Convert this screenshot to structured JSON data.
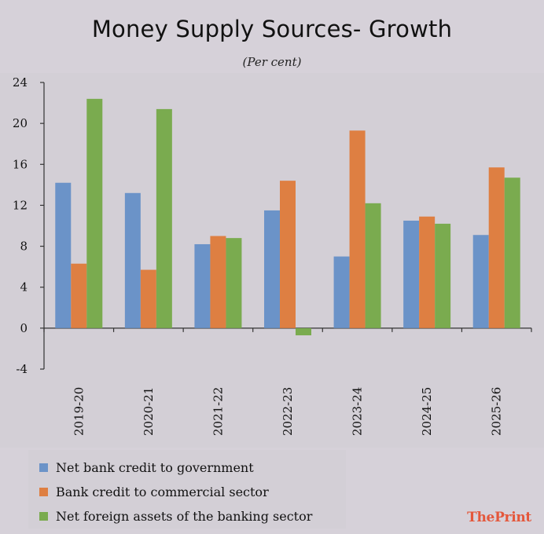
{
  "colors": {
    "series": [
      "#6b93c8",
      "#de7f42",
      "#7aab4f"
    ],
    "axis": "#333333",
    "brand_the": "#e4573b",
    "brand_print": "#e4573b"
  },
  "brand": {
    "the": "The",
    "print": "Print"
  },
  "chart_data": {
    "type": "bar",
    "title": "Money Supply Sources- Growth",
    "subtitle": "(Per cent)",
    "xlabel": "",
    "ylabel": "",
    "ylim": [
      -4,
      24
    ],
    "yticks": [
      -4,
      0,
      4,
      8,
      12,
      16,
      20,
      24
    ],
    "yticks_labels": [
      "-4",
      "0",
      "4",
      "8",
      "12",
      "16",
      "20",
      "24"
    ],
    "grid": false,
    "legend_position": "bottom-left",
    "categories": [
      "2019-20",
      "2020-21",
      "2021-22",
      "2022-23",
      "2023-24",
      "2024-25",
      "2025-26"
    ],
    "series": [
      {
        "name": "Net bank credit to government",
        "values": [
          14.2,
          13.2,
          8.2,
          11.5,
          7.0,
          10.5,
          9.1
        ]
      },
      {
        "name": "Bank credit to commercial sector",
        "values": [
          6.3,
          5.7,
          9.0,
          14.4,
          19.3,
          10.9,
          15.7
        ]
      },
      {
        "name": "Net foreign assets of the banking sector",
        "values": [
          22.4,
          21.4,
          8.8,
          -0.7,
          12.2,
          10.2,
          14.7
        ]
      }
    ]
  }
}
